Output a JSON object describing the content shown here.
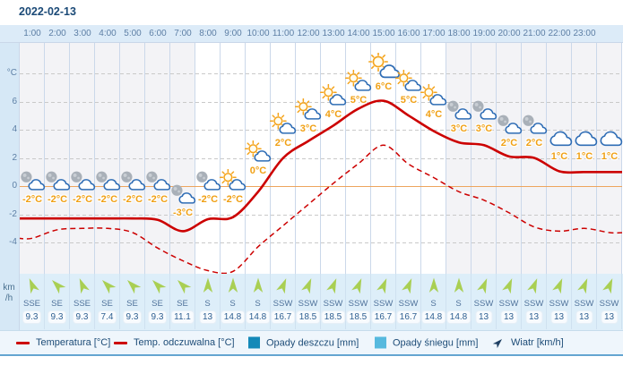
{
  "header": {
    "date": "2022-02-13"
  },
  "axis": {
    "temp_unit": "°C",
    "wind_unit_line1": "km",
    "wind_unit_line2": "/h",
    "y_ticks": [
      {
        "value": 8,
        "label": "°C"
      },
      {
        "value": 6,
        "label": "6"
      },
      {
        "value": 4,
        "label": "4"
      },
      {
        "value": 2,
        "label": "2"
      },
      {
        "value": 0,
        "label": "0"
      },
      {
        "value": -2,
        "label": "-2"
      },
      {
        "value": -4,
        "label": "-4"
      }
    ]
  },
  "chart_data": {
    "type": "line",
    "title": "Hourly weather forecast for 2022-02-13",
    "x": [
      "1:00",
      "2:00",
      "3:00",
      "4:00",
      "5:00",
      "6:00",
      "7:00",
      "8:00",
      "9:00",
      "10:00",
      "11:00",
      "12:00",
      "13:00",
      "14:00",
      "15:00",
      "16:00",
      "17:00",
      "18:00",
      "19:00",
      "20:00",
      "21:00",
      "22:00",
      "23:00",
      ""
    ],
    "ylim": [
      -6.5,
      8.9
    ],
    "grid": true,
    "zero_line": 0,
    "day_columns": {
      "first": 8,
      "last": 17
    },
    "series": [
      {
        "name": "Temperatura [°C]",
        "style": "solid",
        "color": "#cc0000",
        "values": [
          -2.3,
          -2.3,
          -2.3,
          -2.3,
          -2.3,
          -2.4,
          -3.2,
          -2.35,
          -2.2,
          -0.4,
          2.0,
          3.2,
          4.3,
          5.5,
          6.05,
          5.0,
          3.9,
          3.1,
          2.9,
          2.1,
          2.0,
          1.05,
          1.0,
          1.0
        ]
      },
      {
        "name": "Temp. odczuwalna [°C]",
        "style": "dashed",
        "color": "#cc0000",
        "values": [
          -3.7,
          -3.1,
          -3.0,
          -3.0,
          -3.3,
          -4.4,
          -5.3,
          -6.0,
          -6.05,
          -4.3,
          -2.8,
          -1.3,
          0.2,
          1.6,
          2.9,
          1.55,
          0.6,
          -0.4,
          -1.0,
          -1.9,
          -2.9,
          -3.2,
          -3.0,
          -3.3
        ]
      }
    ],
    "hours": [
      {
        "time": "1:00",
        "temp": -2,
        "temp_label": "-2°C",
        "icon": "moon-cloud-icon",
        "wind_dir": "SSE",
        "wind_speed": "9.3"
      },
      {
        "time": "2:00",
        "temp": -2,
        "temp_label": "-2°C",
        "icon": "moon-cloud-icon",
        "wind_dir": "SE",
        "wind_speed": "9.3"
      },
      {
        "time": "3:00",
        "temp": -2,
        "temp_label": "-2°C",
        "icon": "moon-cloud-icon",
        "wind_dir": "SSE",
        "wind_speed": "9.3"
      },
      {
        "time": "4:00",
        "temp": -2,
        "temp_label": "-2°C",
        "icon": "moon-cloud-icon",
        "wind_dir": "SE",
        "wind_speed": "7.4"
      },
      {
        "time": "5:00",
        "temp": -2,
        "temp_label": "-2°C",
        "icon": "moon-cloud-icon",
        "wind_dir": "SE",
        "wind_speed": "9.3"
      },
      {
        "time": "6:00",
        "temp": -2,
        "temp_label": "-2°C",
        "icon": "moon-cloud-icon",
        "wind_dir": "SE",
        "wind_speed": "9.3"
      },
      {
        "time": "7:00",
        "temp": -3,
        "temp_label": "-3°C",
        "icon": "moon-cloud-icon",
        "wind_dir": "SE",
        "wind_speed": "11.1"
      },
      {
        "time": "8:00",
        "temp": -2,
        "temp_label": "-2°C",
        "icon": "moon-cloud-icon",
        "wind_dir": "S",
        "wind_speed": "13"
      },
      {
        "time": "9:00",
        "temp": -2,
        "temp_label": "-2°C",
        "icon": "sun-cloud-icon",
        "wind_dir": "S",
        "wind_speed": "14.8"
      },
      {
        "time": "10:00",
        "temp": 0,
        "temp_label": "0°C",
        "icon": "sun-cloud-icon",
        "wind_dir": "S",
        "wind_speed": "14.8"
      },
      {
        "time": "11:00",
        "temp": 2,
        "temp_label": "2°C",
        "icon": "sun-cloud-icon",
        "wind_dir": "SSW",
        "wind_speed": "16.7"
      },
      {
        "time": "12:00",
        "temp": 3,
        "temp_label": "3°C",
        "icon": "sun-cloud-icon",
        "wind_dir": "SSW",
        "wind_speed": "18.5"
      },
      {
        "time": "13:00",
        "temp": 4,
        "temp_label": "4°C",
        "icon": "sun-cloud-icon",
        "wind_dir": "SSW",
        "wind_speed": "18.5"
      },
      {
        "time": "14:00",
        "temp": 5,
        "temp_label": "5°C",
        "icon": "sun-cloud-icon",
        "wind_dir": "SSW",
        "wind_speed": "18.5"
      },
      {
        "time": "15:00",
        "temp": 6,
        "temp_label": "6°C",
        "icon": "sun-cloud-big-icon",
        "wind_dir": "SSW",
        "wind_speed": "16.7"
      },
      {
        "time": "16:00",
        "temp": 5,
        "temp_label": "5°C",
        "icon": "sun-cloud-icon",
        "wind_dir": "SSW",
        "wind_speed": "16.7"
      },
      {
        "time": "17:00",
        "temp": 4,
        "temp_label": "4°C",
        "icon": "sun-cloud-icon",
        "wind_dir": "S",
        "wind_speed": "14.8"
      },
      {
        "time": "18:00",
        "temp": 3,
        "temp_label": "3°C",
        "icon": "moon-cloud-icon",
        "wind_dir": "S",
        "wind_speed": "14.8"
      },
      {
        "time": "19:00",
        "temp": 3,
        "temp_label": "3°C",
        "icon": "moon-cloud-icon",
        "wind_dir": "SSW",
        "wind_speed": "13"
      },
      {
        "time": "20:00",
        "temp": 2,
        "temp_label": "2°C",
        "icon": "moon-cloud-icon",
        "wind_dir": "SSW",
        "wind_speed": "13"
      },
      {
        "time": "21:00",
        "temp": 2,
        "temp_label": "2°C",
        "icon": "moon-cloud-icon",
        "wind_dir": "SSW",
        "wind_speed": "13"
      },
      {
        "time": "22:00",
        "temp": 1,
        "temp_label": "1°C",
        "icon": "cloud-icon",
        "wind_dir": "SSW",
        "wind_speed": "13"
      },
      {
        "time": "23:00",
        "temp": 1,
        "temp_label": "1°C",
        "icon": "cloud-icon",
        "wind_dir": "SSW",
        "wind_speed": "13"
      },
      {
        "time": "",
        "temp": 1,
        "temp_label": "1°C",
        "icon": "cloud-icon",
        "wind_dir": "SSW",
        "wind_speed": "13"
      }
    ]
  },
  "legend": {
    "items": [
      {
        "label": "Temperatura [°C]",
        "swatch": "line-solid",
        "color": "#cc0000"
      },
      {
        "label": "Temp. odczuwalna [°C]",
        "swatch": "line-dashed",
        "color": "#cc0000"
      },
      {
        "label": "Opady deszczu [mm]",
        "swatch": "square",
        "color": "#1489b8"
      },
      {
        "label": "Opady śniegu [mm]",
        "swatch": "square",
        "color": "#56b9de"
      },
      {
        "label": "Wiatr [km/h]",
        "swatch": "wind-arrow",
        "color": "#1e3f63"
      }
    ]
  },
  "colors": {
    "temperature_line": "#cc0000",
    "temp_label": "#f0a014",
    "zero_line": "#eda55e",
    "night_column": "#f3f3f6",
    "day_column": "#ffffff",
    "wind_arrow": "#a9cf53",
    "sun": "#f4a41c",
    "cloud_stroke": "#2f6db5",
    "moon": "#a9b0b8",
    "axis_text": "#5d7fa5",
    "date_text": "#1b4a77",
    "legend_text": "#1d4c77"
  }
}
